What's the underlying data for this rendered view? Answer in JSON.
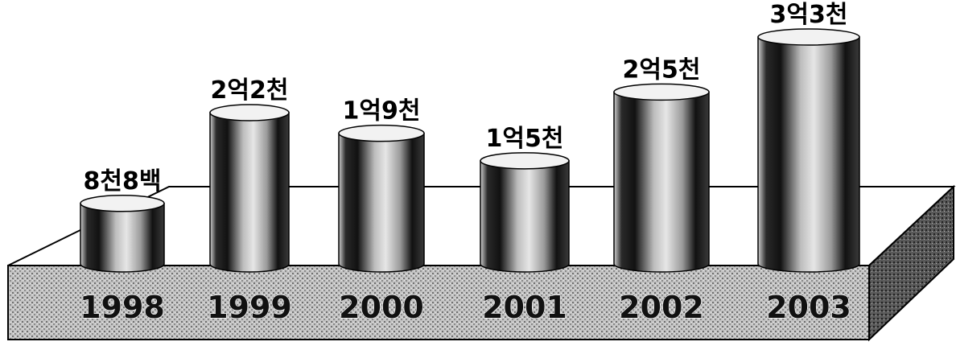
{
  "chart_data": {
    "type": "bar",
    "title": "",
    "xlabel": "",
    "ylabel": "",
    "categories": [
      "1998",
      "1999",
      "2000",
      "2001",
      "2002",
      "2003"
    ],
    "values": [
      88000000,
      220000000,
      190000000,
      150000000,
      250000000,
      330000000
    ],
    "value_labels": [
      "8천8백",
      "2억2천",
      "1억9천",
      "1억5천",
      "2억5천",
      "3억3천"
    ],
    "ylim": [
      0,
      330000000
    ],
    "grid": false,
    "legend": "none",
    "colors": {
      "bar_dark": "#111111",
      "bar_light": "#d9d9d9",
      "base_top": "#ffffff",
      "base_front": "#bdbdbd",
      "outline": "#000000"
    }
  }
}
